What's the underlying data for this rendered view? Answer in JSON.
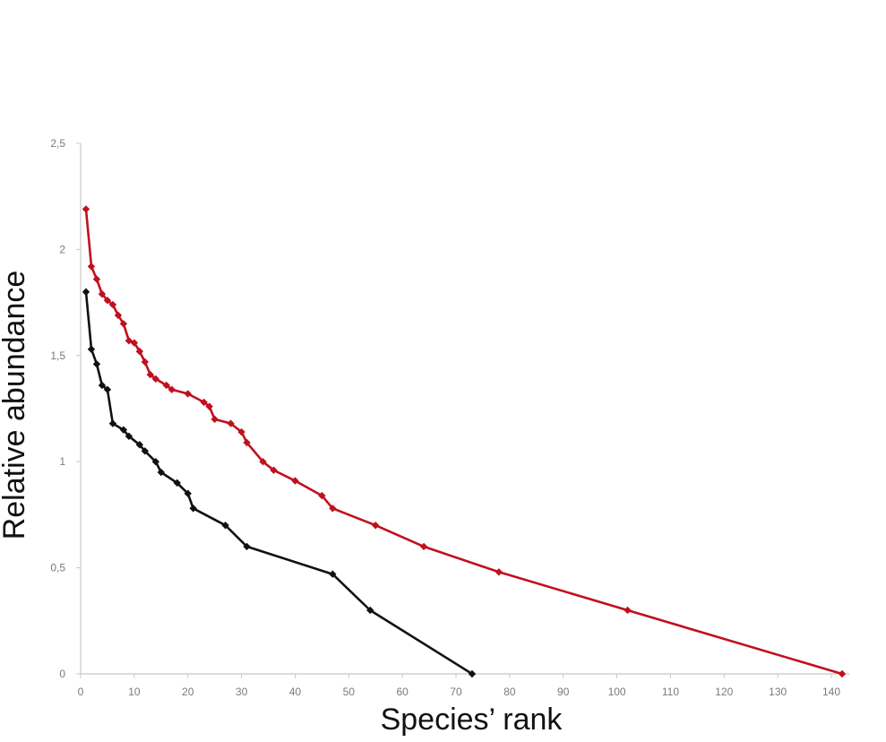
{
  "chart_data": {
    "type": "line",
    "title": "",
    "xlabel": "Species’ rank",
    "ylabel": "Relative abundance",
    "xlim": [
      0,
      145
    ],
    "ylim": [
      0,
      2.5
    ],
    "x_ticks": [
      0,
      10,
      20,
      30,
      40,
      50,
      60,
      70,
      80,
      90,
      100,
      110,
      120,
      130,
      140
    ],
    "y_ticks": [
      0,
      0.5,
      1,
      1.5,
      2,
      2.5
    ],
    "y_tick_labels": [
      "0",
      "0,5",
      "1",
      "1,5",
      "2",
      "2,5"
    ],
    "grid": false,
    "legend": "none",
    "series": [
      {
        "color": "#c0101e",
        "marker": "diamond",
        "points": [
          [
            1,
            2.19
          ],
          [
            2,
            1.92
          ],
          [
            3,
            1.86
          ],
          [
            4,
            1.79
          ],
          [
            5,
            1.76
          ],
          [
            6,
            1.74
          ],
          [
            7,
            1.69
          ],
          [
            8,
            1.65
          ],
          [
            9,
            1.57
          ],
          [
            10,
            1.56
          ],
          [
            11,
            1.52
          ],
          [
            12,
            1.47
          ],
          [
            13,
            1.41
          ],
          [
            14,
            1.39
          ],
          [
            16,
            1.36
          ],
          [
            17,
            1.34
          ],
          [
            20,
            1.32
          ],
          [
            23,
            1.28
          ],
          [
            24,
            1.26
          ],
          [
            25,
            1.2
          ],
          [
            28,
            1.18
          ],
          [
            30,
            1.14
          ],
          [
            31,
            1.09
          ],
          [
            34,
            1.0
          ],
          [
            36,
            0.96
          ],
          [
            40,
            0.91
          ],
          [
            45,
            0.84
          ],
          [
            47,
            0.78
          ],
          [
            55,
            0.7
          ],
          [
            64,
            0.6
          ],
          [
            78,
            0.48
          ],
          [
            102,
            0.3
          ],
          [
            142,
            0.0
          ]
        ]
      },
      {
        "color": "#111111",
        "marker": "diamond",
        "points": [
          [
            1,
            1.8
          ],
          [
            2,
            1.53
          ],
          [
            3,
            1.46
          ],
          [
            4,
            1.36
          ],
          [
            5,
            1.34
          ],
          [
            6,
            1.18
          ],
          [
            8,
            1.15
          ],
          [
            9,
            1.12
          ],
          [
            11,
            1.08
          ],
          [
            12,
            1.05
          ],
          [
            14,
            1.0
          ],
          [
            15,
            0.95
          ],
          [
            18,
            0.9
          ],
          [
            20,
            0.85
          ],
          [
            21,
            0.78
          ],
          [
            27,
            0.7
          ],
          [
            31,
            0.6
          ],
          [
            47,
            0.47
          ],
          [
            54,
            0.3
          ],
          [
            73,
            0.0
          ]
        ]
      }
    ]
  }
}
